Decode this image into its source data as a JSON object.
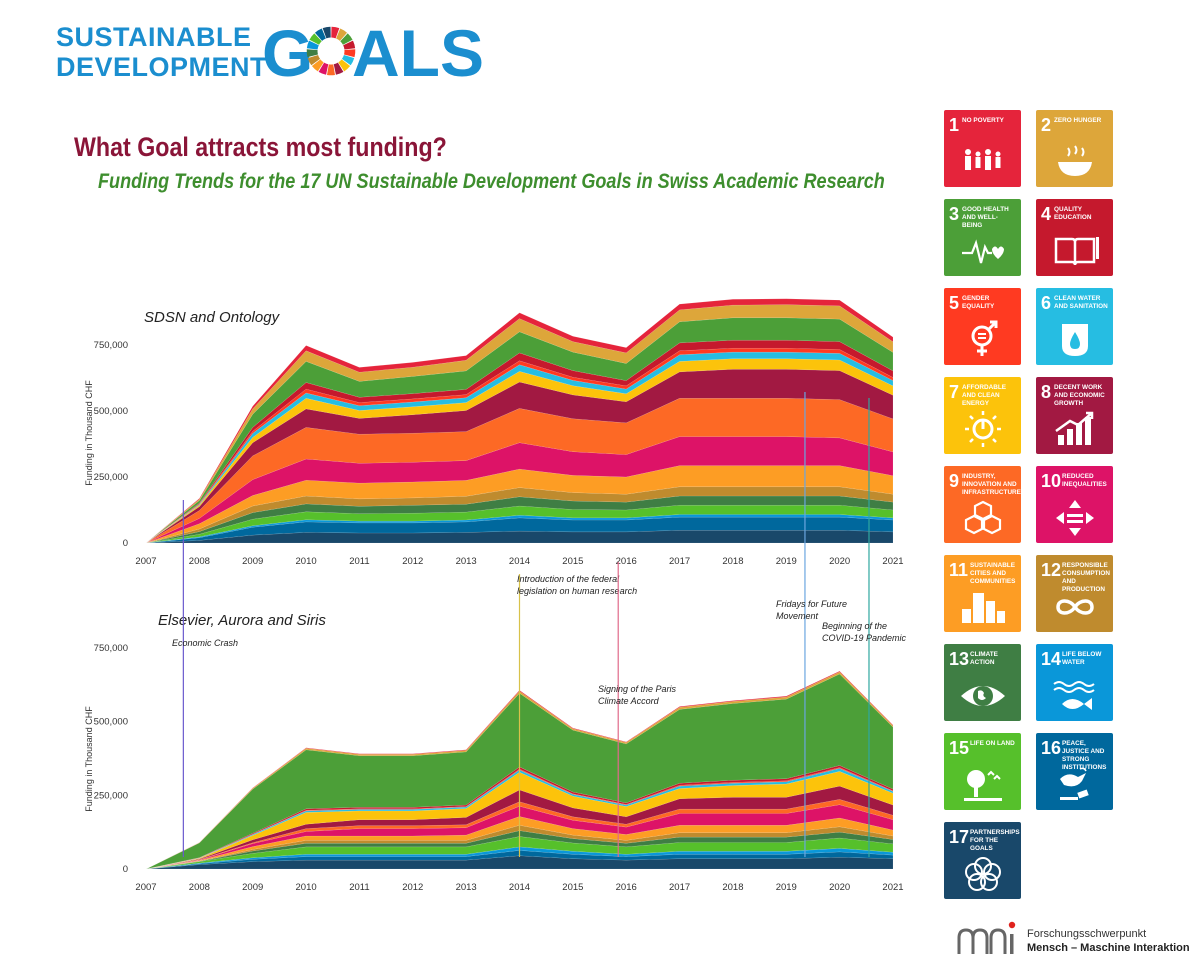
{
  "header": {
    "logo_line1": "SUSTAINABLE",
    "logo_line2": "DEVELOPMENT",
    "logo_g": "G",
    "logo_als": "ALS",
    "title": "What Goal attracts most funding?",
    "subtitle": "Funding Trends for the 17 UN Sustainable Development Goals in Swiss Academic Research"
  },
  "colors": {
    "sdg": [
      "#E5243B",
      "#DDA63A",
      "#4C9F38",
      "#C5192D",
      "#FF3A21",
      "#26BDE2",
      "#FCC30B",
      "#A21942",
      "#FD6925",
      "#DD1367",
      "#FD9D24",
      "#BF8B2E",
      "#3F7E44",
      "#0A97D9",
      "#56C02B",
      "#00689D",
      "#19486A"
    ],
    "title": "#8a1538",
    "subtitle": "#3e8e2e",
    "logo_blue": "#1b8ecf"
  },
  "chart_data": [
    {
      "type": "area",
      "stacked": true,
      "title": "SDSN and Ontology",
      "ylabel": "Funding in Thousand CHF",
      "x": [
        2007,
        2008,
        2009,
        2010,
        2011,
        2012,
        2013,
        2014,
        2015,
        2016,
        2017,
        2018,
        2019,
        2020,
        2021
      ],
      "ylim": [
        0,
        850000
      ],
      "yticks": [
        0,
        250000,
        500000,
        750000
      ],
      "ytick_labels": [
        "0",
        "250,000",
        "500,000",
        "750,000"
      ],
      "stack_order": [
        17,
        16,
        14,
        15,
        13,
        12,
        11,
        10,
        9,
        8,
        7,
        6,
        5,
        4,
        3,
        2,
        1
      ],
      "series": [
        {
          "goal": 1,
          "values": [
            0,
            3000,
            10000,
            20000,
            18000,
            18000,
            18000,
            22000,
            20000,
            20000,
            22000,
            22000,
            22000,
            22000,
            18000
          ]
        },
        {
          "goal": 2,
          "values": [
            0,
            5000,
            20000,
            40000,
            35000,
            35000,
            40000,
            50000,
            40000,
            40000,
            45000,
            48000,
            50000,
            50000,
            40000
          ]
        },
        {
          "goal": 3,
          "values": [
            0,
            10000,
            50000,
            80000,
            60000,
            65000,
            70000,
            80000,
            70000,
            65000,
            80000,
            85000,
            85000,
            85000,
            70000
          ]
        },
        {
          "goal": 4,
          "values": [
            0,
            3000,
            15000,
            25000,
            20000,
            20000,
            20000,
            30000,
            25000,
            20000,
            30000,
            30000,
            30000,
            30000,
            25000
          ]
        },
        {
          "goal": 5,
          "values": [
            0,
            2000,
            8000,
            15000,
            12000,
            12000,
            12000,
            15000,
            12000,
            12000,
            15000,
            15000,
            15000,
            15000,
            12000
          ]
        },
        {
          "goal": 6,
          "values": [
            0,
            3000,
            15000,
            20000,
            18000,
            18000,
            18000,
            25000,
            20000,
            18000,
            25000,
            25000,
            25000,
            25000,
            20000
          ]
        },
        {
          "goal": 7,
          "values": [
            0,
            5000,
            20000,
            40000,
            30000,
            30000,
            30000,
            40000,
            35000,
            30000,
            40000,
            40000,
            40000,
            40000,
            35000
          ]
        },
        {
          "goal": 8,
          "values": [
            0,
            15000,
            50000,
            70000,
            60000,
            70000,
            80000,
            100000,
            90000,
            80000,
            100000,
            110000,
            110000,
            110000,
            90000
          ]
        },
        {
          "goal": 9,
          "values": [
            0,
            30000,
            90000,
            120000,
            110000,
            110000,
            110000,
            130000,
            125000,
            120000,
            145000,
            145000,
            145000,
            145000,
            125000
          ]
        },
        {
          "goal": 10,
          "values": [
            0,
            20000,
            60000,
            80000,
            75000,
            75000,
            75000,
            100000,
            90000,
            85000,
            110000,
            110000,
            110000,
            105000,
            90000
          ]
        },
        {
          "goal": 11,
          "values": [
            0,
            20000,
            40000,
            60000,
            60000,
            60000,
            60000,
            70000,
            65000,
            65000,
            80000,
            80000,
            80000,
            80000,
            70000
          ]
        },
        {
          "goal": 12,
          "values": [
            0,
            10000,
            25000,
            30000,
            28000,
            28000,
            30000,
            35000,
            32000,
            30000,
            35000,
            35000,
            35000,
            35000,
            30000
          ]
        },
        {
          "goal": 13,
          "values": [
            0,
            10000,
            25000,
            30000,
            28000,
            30000,
            30000,
            35000,
            32000,
            30000,
            35000,
            35000,
            35000,
            35000,
            30000
          ]
        },
        {
          "goal": 15,
          "values": [
            0,
            10000,
            25000,
            30000,
            28000,
            30000,
            30000,
            35000,
            32000,
            30000,
            35000,
            35000,
            35000,
            35000,
            30000
          ]
        },
        {
          "goal": 14,
          "values": [
            0,
            3000,
            5000,
            8000,
            7000,
            7000,
            7000,
            10000,
            8000,
            8000,
            10000,
            10000,
            10000,
            10000,
            8000
          ]
        },
        {
          "goal": 16,
          "values": [
            0,
            10000,
            30000,
            40000,
            38000,
            38000,
            40000,
            50000,
            45000,
            45000,
            50000,
            50000,
            50000,
            50000,
            45000
          ]
        },
        {
          "goal": 17,
          "values": [
            0,
            10000,
            30000,
            40000,
            38000,
            38000,
            40000,
            45000,
            42000,
            42000,
            48000,
            48000,
            48000,
            48000,
            42000
          ]
        }
      ]
    },
    {
      "type": "area",
      "stacked": true,
      "title": "Elsevier, Aurora and Siris",
      "ylabel": "Funding in Thousand CHF",
      "x": [
        2007,
        2008,
        2009,
        2010,
        2011,
        2012,
        2013,
        2014,
        2015,
        2016,
        2017,
        2018,
        2019,
        2020,
        2021
      ],
      "ylim": [
        0,
        850000
      ],
      "yticks": [
        0,
        250000,
        500000,
        750000
      ],
      "ytick_labels": [
        "0",
        "250,000",
        "500,000",
        "750,000"
      ],
      "stack_order": [
        17,
        16,
        14,
        15,
        13,
        12,
        11,
        10,
        9,
        8,
        7,
        6,
        5,
        4,
        3,
        2,
        1
      ],
      "series": [
        {
          "goal": 1,
          "values": [
            0,
            500,
            1000,
            2000,
            2000,
            2000,
            2000,
            3000,
            2000,
            2000,
            3000,
            3000,
            3000,
            3000,
            2000
          ]
        },
        {
          "goal": 2,
          "values": [
            0,
            1000,
            3000,
            5000,
            5000,
            5000,
            5000,
            7000,
            5000,
            5000,
            7000,
            7000,
            7000,
            7000,
            5000
          ]
        },
        {
          "goal": 3,
          "values": [
            0,
            50000,
            150000,
            200000,
            175000,
            175000,
            180000,
            250000,
            210000,
            200000,
            250000,
            260000,
            270000,
            310000,
            210000
          ]
        },
        {
          "goal": 4,
          "values": [
            0,
            1000,
            3000,
            5000,
            5000,
            5000,
            5000,
            7000,
            6000,
            5000,
            7000,
            7000,
            7000,
            7000,
            6000
          ]
        },
        {
          "goal": 5,
          "values": [
            0,
            500,
            1000,
            2000,
            2000,
            2000,
            2000,
            3000,
            2000,
            2000,
            3000,
            3000,
            3000,
            3000,
            2000
          ]
        },
        {
          "goal": 6,
          "values": [
            0,
            1000,
            3000,
            5000,
            5000,
            5000,
            5000,
            8000,
            6000,
            5000,
            8000,
            8000,
            8000,
            10000,
            6000
          ]
        },
        {
          "goal": 7,
          "values": [
            0,
            2000,
            15000,
            40000,
            30000,
            30000,
            30000,
            60000,
            40000,
            35000,
            35000,
            40000,
            45000,
            50000,
            40000
          ]
        },
        {
          "goal": 8,
          "values": [
            0,
            2000,
            10000,
            15000,
            20000,
            20000,
            25000,
            40000,
            30000,
            25000,
            35000,
            40000,
            40000,
            45000,
            35000
          ]
        },
        {
          "goal": 9,
          "values": [
            0,
            1000,
            3000,
            10000,
            10000,
            10000,
            10000,
            15000,
            12000,
            10000,
            15000,
            15000,
            15000,
            18000,
            15000
          ]
        },
        {
          "goal": 10,
          "values": [
            0,
            2000,
            10000,
            15000,
            25000,
            25000,
            25000,
            35000,
            28000,
            25000,
            40000,
            40000,
            40000,
            45000,
            35000
          ]
        },
        {
          "goal": 11,
          "values": [
            0,
            2000,
            10000,
            15000,
            15000,
            15000,
            18000,
            30000,
            22000,
            20000,
            25000,
            25000,
            25000,
            30000,
            20000
          ]
        },
        {
          "goal": 12,
          "values": [
            0,
            1000,
            5000,
            10000,
            10000,
            10000,
            10000,
            18000,
            12000,
            10000,
            15000,
            15000,
            15000,
            18000,
            12000
          ]
        },
        {
          "goal": 13,
          "values": [
            0,
            1000,
            8000,
            12000,
            12000,
            12000,
            12000,
            20000,
            15000,
            12000,
            18000,
            18000,
            18000,
            20000,
            15000
          ]
        },
        {
          "goal": 15,
          "values": [
            0,
            5000,
            15000,
            25000,
            25000,
            25000,
            25000,
            35000,
            28000,
            25000,
            30000,
            30000,
            30000,
            35000,
            28000
          ]
        },
        {
          "goal": 14,
          "values": [
            0,
            2000,
            5000,
            8000,
            8000,
            8000,
            8000,
            12000,
            10000,
            8000,
            10000,
            10000,
            10000,
            12000,
            10000
          ]
        },
        {
          "goal": 16,
          "values": [
            0,
            3000,
            8000,
            12000,
            12000,
            12000,
            12000,
            18000,
            15000,
            12000,
            15000,
            15000,
            15000,
            18000,
            12000
          ]
        },
        {
          "goal": 17,
          "values": [
            0,
            15000,
            25000,
            30000,
            30000,
            30000,
            30000,
            45000,
            35000,
            30000,
            35000,
            35000,
            35000,
            40000,
            35000
          ]
        }
      ]
    }
  ],
  "annotations": [
    {
      "year": 2007.7,
      "lines": [
        "Economic Crash"
      ],
      "color": "#6a5acd"
    },
    {
      "year": 2014.0,
      "lines": [
        "Introduction of the federal",
        "legislation on human research"
      ],
      "color": "#d8c24a"
    },
    {
      "year": 2015.85,
      "lines": [
        "Signing of the Paris",
        "Climate Accord"
      ],
      "color": "#e06a8a"
    },
    {
      "year": 2019.35,
      "lines": [
        "Fridays for Future",
        "Movement"
      ],
      "color": "#6aa6e0"
    },
    {
      "year": 2020.55,
      "lines": [
        "Beginning of the",
        "COVID-19 Pandemic"
      ],
      "color": "#2fa7a0"
    }
  ],
  "tiles": [
    {
      "num": "1",
      "label": "No Poverty",
      "icon": "people-icon"
    },
    {
      "num": "2",
      "label": "Zero Hunger",
      "icon": "bowl-icon"
    },
    {
      "num": "3",
      "label": "Good Health and Well-Being",
      "icon": "heartbeat-icon"
    },
    {
      "num": "4",
      "label": "Quality Education",
      "icon": "book-icon"
    },
    {
      "num": "5",
      "label": "Gender Equality",
      "icon": "gender-icon"
    },
    {
      "num": "6",
      "label": "Clean Water and Sanitation",
      "icon": "water-drop-icon"
    },
    {
      "num": "7",
      "label": "Affordable and Clean Energy",
      "icon": "sun-power-icon"
    },
    {
      "num": "8",
      "label": "Decent Work and Economic Growth",
      "icon": "growth-chart-icon"
    },
    {
      "num": "9",
      "label": "Industry, Innovation and Infrastructure",
      "icon": "cubes-icon"
    },
    {
      "num": "10",
      "label": "Reduced Inequalities",
      "icon": "equality-arrows-icon"
    },
    {
      "num": "11",
      "label": "Sustainable Cities and Communities",
      "icon": "city-icon"
    },
    {
      "num": "12",
      "label": "Responsible Consumption and Production",
      "icon": "infinity-icon"
    },
    {
      "num": "13",
      "label": "Climate Action",
      "icon": "eye-globe-icon"
    },
    {
      "num": "14",
      "label": "Life Below Water",
      "icon": "fish-icon"
    },
    {
      "num": "15",
      "label": "Life on Land",
      "icon": "tree-icon"
    },
    {
      "num": "16",
      "label": "Peace, Justice and Strong Institutions",
      "icon": "dove-gavel-icon"
    },
    {
      "num": "17",
      "label": "Partnerships for the Goals",
      "icon": "rings-icon"
    }
  ],
  "footer": {
    "org_line1": "Forschungsschwerpunkt",
    "org_line2": "Mensch – Maschine Interaktion"
  }
}
